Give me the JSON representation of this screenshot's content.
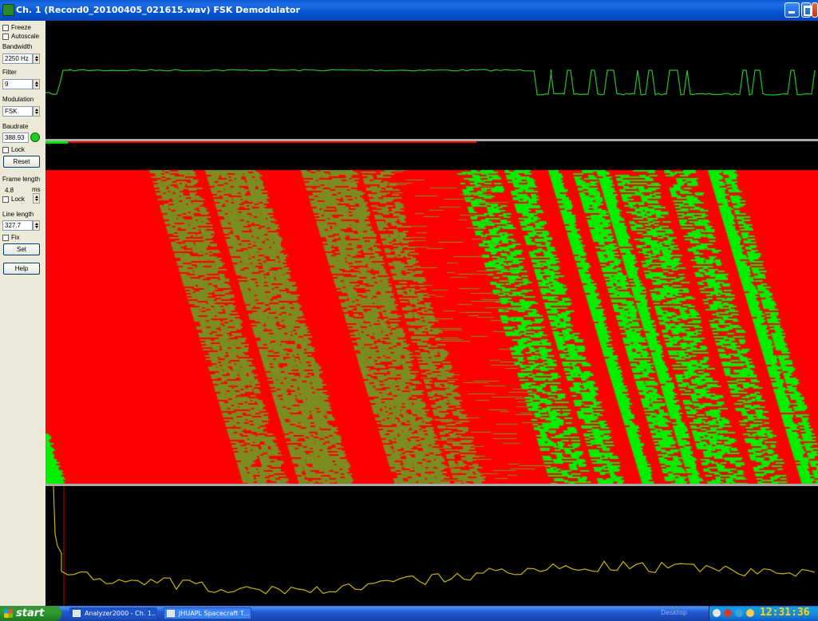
{
  "window": {
    "title": "Ch. 1 (Record0_20100405_021615.wav)  FSK Demodulator"
  },
  "controls": {
    "freeze_label": "Freeze",
    "autoscale_label": "Autoscale",
    "bandwidth_label": "Bandwidth",
    "bandwidth_value": "2250 Hz",
    "filter_label": "Filter",
    "filter_value": "9",
    "modulation_label": "Modulation",
    "modulation_value": "FSK",
    "baudrate_label": "Baudrate",
    "baudrate_value": "388.93",
    "lock_label": "Lock",
    "reset_label": "Reset",
    "frame_length_label": "Frame length",
    "frame_length_value": "4.8",
    "frame_length_unit": "ms",
    "frame_lock_label": "Lock",
    "line_length_label": "Line length",
    "line_length_value": "327.7",
    "fix_label": "Fix",
    "set_label": "Set",
    "help_label": "Help"
  },
  "colors": {
    "bit_zero": "#ff0000",
    "bit_one": "#00ee00",
    "bit_mixed": "#7b8c21",
    "scope_trace": "#22c322",
    "spectrum_trace": "#c8b400",
    "marker_line": "#c00000"
  },
  "taskbar": {
    "start_label": "start",
    "tasks": [
      {
        "label": "Analyzer2000 - Ch. 1..."
      },
      {
        "label": "JHUAPL Spacecraft T..."
      }
    ],
    "desktop_label": "Desktop",
    "clock": "12:31:36"
  }
}
